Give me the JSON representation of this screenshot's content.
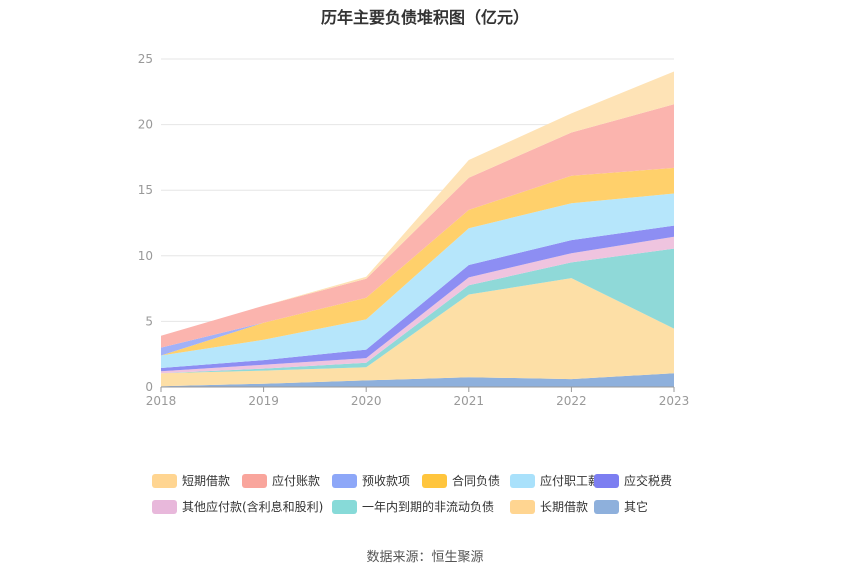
{
  "title": "历年主要负债堆积图（亿元）",
  "source": "数据来源：恒生聚源",
  "chart_data": {
    "type": "area",
    "stacked": true,
    "categories": [
      "2018",
      "2019",
      "2020",
      "2021",
      "2022",
      "2023"
    ],
    "ylim": [
      0,
      25
    ],
    "yticks": [
      "0",
      "5",
      "10",
      "15",
      "20",
      "25"
    ],
    "grid": true,
    "legend_position": "bottom",
    "series": [
      {
        "name": "其它",
        "color": "#8eb0dc",
        "values": [
          0.05,
          0.25,
          0.5,
          0.75,
          0.6,
          1.05
        ]
      },
      {
        "name": "长期借款",
        "color": "#fddfa6",
        "values": [
          1.0,
          1.0,
          1.0,
          6.3,
          7.7,
          3.4
        ]
      },
      {
        "name": "一年内到期的非流动负债",
        "color": "#8fd9d8",
        "values": [
          0.0,
          0.15,
          0.35,
          0.7,
          1.2,
          6.1
        ]
      },
      {
        "name": "其他应付款(含利息和股利)",
        "color": "#efc4df",
        "values": [
          0.15,
          0.3,
          0.35,
          0.6,
          0.7,
          0.9
        ]
      },
      {
        "name": "应交税费",
        "color": "#8d8ef3",
        "values": [
          0.25,
          0.35,
          0.65,
          0.95,
          1.0,
          0.85
        ]
      },
      {
        "name": "应付职工薪酬",
        "color": "#b6e6fb",
        "values": [
          0.95,
          1.55,
          2.3,
          2.8,
          2.8,
          2.45
        ]
      },
      {
        "name": "合同负债",
        "color": "#ffd06b",
        "values": [
          0.0,
          1.3,
          1.65,
          1.4,
          2.1,
          1.95
        ]
      },
      {
        "name": "预收款项",
        "color": "#a1b1f8",
        "values": [
          0.6,
          0.0,
          0.0,
          0.0,
          0.0,
          0.0
        ]
      },
      {
        "name": "应付账款",
        "color": "#fbb4ae",
        "values": [
          0.9,
          1.3,
          1.45,
          2.45,
          3.3,
          4.85
        ]
      },
      {
        "name": "短期借款",
        "color": "#fee3b6",
        "values": [
          0.0,
          0.0,
          0.15,
          1.35,
          1.45,
          2.5
        ]
      }
    ]
  },
  "legend": [
    {
      "label": "短期借款",
      "color": "#ffd591"
    },
    {
      "label": "应付账款",
      "color": "#f9a59c"
    },
    {
      "label": "预收款项",
      "color": "#8da7f8"
    },
    {
      "label": "合同负债",
      "color": "#ffc53d"
    },
    {
      "label": "应付职工薪酬",
      "color": "#a9e1fb"
    },
    {
      "label": "应交税费",
      "color": "#7c7ef1"
    },
    {
      "label": "其他应付款(含利息和股利)",
      "color": "#e8b8db"
    },
    {
      "label": "一年内到期的非流动负债",
      "color": "#87dad8"
    },
    {
      "label": "长期借款",
      "color": "#ffd591"
    },
    {
      "label": "其它",
      "color": "#8eb0dc"
    }
  ]
}
